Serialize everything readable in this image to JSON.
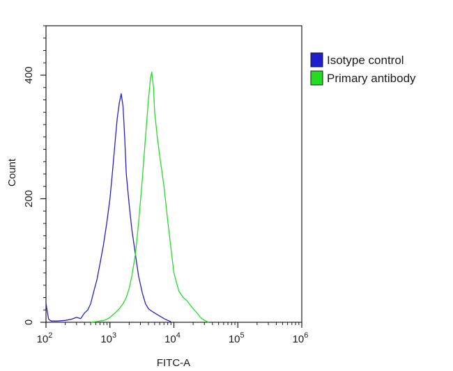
{
  "chart_data": {
    "type": "line",
    "xlabel": "FITC-A",
    "ylabel": "Count",
    "xscale": "log",
    "xlim": [
      100,
      1000000
    ],
    "ylim": [
      0,
      480
    ],
    "x_tick_labels": [
      {
        "base": "10",
        "exp": "2",
        "value": 100
      },
      {
        "base": "10",
        "exp": "3",
        "value": 1000
      },
      {
        "base": "10",
        "exp": "4",
        "value": 10000
      },
      {
        "base": "10",
        "exp": "5",
        "value": 100000
      },
      {
        "base": "10",
        "exp": "6",
        "value": 1000000
      }
    ],
    "y_ticks": [
      0,
      200,
      400
    ],
    "y_tick_labels": [
      "0",
      "200",
      "400"
    ],
    "legend_position": "top-right",
    "grid": false,
    "series": [
      {
        "name": "Isotype control",
        "color": "#1f1fcc",
        "x": [
          100,
          110,
          120,
          150,
          200,
          250,
          300,
          350,
          400,
          450,
          500,
          560,
          630,
          700,
          790,
          890,
          1000,
          1100,
          1200,
          1300,
          1400,
          1500,
          1600,
          1700,
          1800,
          2000,
          2200,
          2500,
          2800,
          3200,
          3600,
          4000,
          4500,
          5000,
          6000,
          7000,
          8000,
          9000
        ],
        "y": [
          30,
          5,
          2,
          2,
          3,
          5,
          8,
          6,
          15,
          20,
          30,
          50,
          70,
          95,
          125,
          160,
          200,
          245,
          290,
          330,
          355,
          370,
          350,
          300,
          240,
          190,
          150,
          110,
          75,
          48,
          30,
          22,
          18,
          15,
          10,
          6,
          3,
          1
        ]
      },
      {
        "name": "Primary antibody",
        "color": "#22dd22",
        "x": [
          500,
          600,
          700,
          800,
          900,
          1000,
          1200,
          1400,
          1600,
          1800,
          2000,
          2200,
          2500,
          2800,
          3200,
          3600,
          4000,
          4300,
          4500,
          4800,
          5000,
          5500,
          6000,
          7000,
          8000,
          9000,
          10000,
          12000,
          14000,
          16000,
          18000,
          20000,
          23000,
          26000,
          30000,
          35000
        ],
        "y": [
          0,
          1,
          2,
          3,
          5,
          8,
          15,
          22,
          30,
          40,
          55,
          75,
          110,
          160,
          230,
          300,
          360,
          395,
          405,
          380,
          340,
          300,
          270,
          220,
          165,
          120,
          80,
          50,
          40,
          35,
          28,
          22,
          15,
          8,
          3,
          0
        ]
      }
    ]
  }
}
